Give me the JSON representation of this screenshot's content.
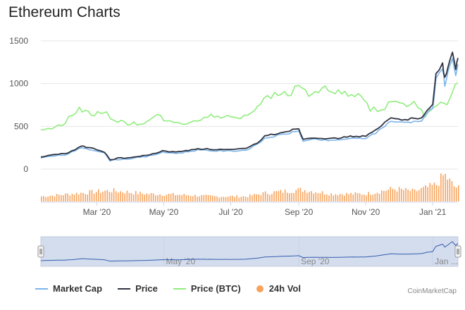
{
  "title": "Ethereum Charts",
  "credit": "CoinMarketCap",
  "colors": {
    "market_cap": "#7cb5ec",
    "price": "#2f3440",
    "price_btc": "#90ed7d",
    "vol": "#f7a35c"
  },
  "legend": [
    {
      "key": "market_cap",
      "label": "Market Cap",
      "kind": "line"
    },
    {
      "key": "price",
      "label": "Price",
      "kind": "line"
    },
    {
      "key": "price_btc",
      "label": "Price (BTC)",
      "kind": "line"
    },
    {
      "key": "vol",
      "label": "24h Vol",
      "kind": "dot"
    }
  ],
  "chart_data": {
    "type": "line",
    "title": "Ethereum Charts",
    "x_start": "2020-01-10",
    "x_end": "2021-01-24",
    "x_ticks": [
      {
        "label": "Mar '20",
        "date": "2020-03-01"
      },
      {
        "label": "May '20",
        "date": "2020-05-01"
      },
      {
        "label": "Jul '20",
        "date": "2020-07-01"
      },
      {
        "label": "Sep '20",
        "date": "2020-09-01"
      },
      {
        "label": "Nov '20",
        "date": "2020-11-01"
      },
      {
        "label": "Jan '21",
        "date": "2021-01-01"
      }
    ],
    "y_ticks": [
      "1500",
      "1000",
      "500",
      "0"
    ],
    "ylim": [
      0,
      1500
    ],
    "series": [
      {
        "name": "Price",
        "key": "price",
        "points": [
          [
            "2020-01-10",
            143
          ],
          [
            "2020-01-20",
            166
          ],
          [
            "2020-02-01",
            180
          ],
          [
            "2020-02-10",
            225
          ],
          [
            "2020-02-16",
            270
          ],
          [
            "2020-02-20",
            260
          ],
          [
            "2020-03-01",
            230
          ],
          [
            "2020-03-08",
            200
          ],
          [
            "2020-03-13",
            110
          ],
          [
            "2020-03-20",
            125
          ],
          [
            "2020-04-01",
            135
          ],
          [
            "2020-04-15",
            158
          ],
          [
            "2020-04-30",
            210
          ],
          [
            "2020-05-15",
            200
          ],
          [
            "2020-06-01",
            240
          ],
          [
            "2020-06-15",
            230
          ],
          [
            "2020-07-01",
            226
          ],
          [
            "2020-07-15",
            238
          ],
          [
            "2020-07-25",
            305
          ],
          [
            "2020-08-01",
            385
          ],
          [
            "2020-08-15",
            425
          ],
          [
            "2020-09-01",
            475
          ],
          [
            "2020-09-05",
            350
          ],
          [
            "2020-09-15",
            370
          ],
          [
            "2020-10-01",
            355
          ],
          [
            "2020-10-15",
            378
          ],
          [
            "2020-11-01",
            387
          ],
          [
            "2020-11-10",
            450
          ],
          [
            "2020-11-24",
            600
          ],
          [
            "2020-12-01",
            580
          ],
          [
            "2020-12-15",
            590
          ],
          [
            "2020-12-22",
            610
          ],
          [
            "2020-12-27",
            700
          ],
          [
            "2021-01-01",
            750
          ],
          [
            "2021-01-04",
            1100
          ],
          [
            "2021-01-10",
            1250
          ],
          [
            "2021-01-12",
            1050
          ],
          [
            "2021-01-15",
            1200
          ],
          [
            "2021-01-19",
            1400
          ],
          [
            "2021-01-22",
            1150
          ],
          [
            "2021-01-24",
            1300
          ]
        ]
      },
      {
        "name": "Market Cap",
        "key": "market_cap",
        "points": [
          [
            "2020-01-10",
            130
          ],
          [
            "2020-01-20",
            152
          ],
          [
            "2020-02-01",
            166
          ],
          [
            "2020-02-10",
            210
          ],
          [
            "2020-02-16",
            252
          ],
          [
            "2020-02-20",
            242
          ],
          [
            "2020-03-01",
            214
          ],
          [
            "2020-03-08",
            186
          ],
          [
            "2020-03-13",
            100
          ],
          [
            "2020-03-20",
            114
          ],
          [
            "2020-04-01",
            123
          ],
          [
            "2020-04-15",
            145
          ],
          [
            "2020-04-30",
            195
          ],
          [
            "2020-05-15",
            186
          ],
          [
            "2020-06-01",
            224
          ],
          [
            "2020-06-15",
            214
          ],
          [
            "2020-07-01",
            211
          ],
          [
            "2020-07-15",
            222
          ],
          [
            "2020-07-25",
            285
          ],
          [
            "2020-08-01",
            360
          ],
          [
            "2020-08-15",
            398
          ],
          [
            "2020-09-01",
            445
          ],
          [
            "2020-09-05",
            328
          ],
          [
            "2020-09-15",
            346
          ],
          [
            "2020-10-01",
            332
          ],
          [
            "2020-10-15",
            354
          ],
          [
            "2020-11-01",
            362
          ],
          [
            "2020-11-10",
            422
          ],
          [
            "2020-11-24",
            565
          ],
          [
            "2020-12-01",
            545
          ],
          [
            "2020-12-15",
            555
          ],
          [
            "2020-12-22",
            575
          ],
          [
            "2020-12-27",
            660
          ],
          [
            "2021-01-01",
            710
          ],
          [
            "2021-01-04",
            1040
          ],
          [
            "2021-01-10",
            1180
          ],
          [
            "2021-01-12",
            990
          ],
          [
            "2021-01-15",
            1135
          ],
          [
            "2021-01-19",
            1320
          ],
          [
            "2021-01-22",
            1085
          ],
          [
            "2021-01-24",
            1225
          ]
        ]
      },
      {
        "name": "Price (BTC)",
        "key": "price_btc",
        "points": [
          [
            "2020-01-10",
            470
          ],
          [
            "2020-01-20",
            480
          ],
          [
            "2020-02-01",
            540
          ],
          [
            "2020-02-08",
            640
          ],
          [
            "2020-02-14",
            700
          ],
          [
            "2020-02-25",
            650
          ],
          [
            "2020-03-10",
            640
          ],
          [
            "2020-03-20",
            560
          ],
          [
            "2020-04-01",
            525
          ],
          [
            "2020-04-15",
            550
          ],
          [
            "2020-04-25",
            620
          ],
          [
            "2020-05-10",
            530
          ],
          [
            "2020-05-25",
            545
          ],
          [
            "2020-06-10",
            620
          ],
          [
            "2020-06-25",
            610
          ],
          [
            "2020-07-10",
            615
          ],
          [
            "2020-07-20",
            665
          ],
          [
            "2020-07-28",
            790
          ],
          [
            "2020-08-10",
            870
          ],
          [
            "2020-08-25",
            900
          ],
          [
            "2020-09-01",
            975
          ],
          [
            "2020-09-10",
            880
          ],
          [
            "2020-09-25",
            930
          ],
          [
            "2020-10-10",
            880
          ],
          [
            "2020-10-25",
            860
          ],
          [
            "2020-11-05",
            700
          ],
          [
            "2020-11-15",
            690
          ],
          [
            "2020-11-25",
            790
          ],
          [
            "2020-12-05",
            770
          ],
          [
            "2020-12-15",
            760
          ],
          [
            "2020-12-25",
            620
          ],
          [
            "2021-01-02",
            700
          ],
          [
            "2021-01-08",
            820
          ],
          [
            "2021-01-14",
            780
          ],
          [
            "2021-01-19",
            900
          ],
          [
            "2021-01-24",
            1010
          ]
        ]
      }
    ],
    "volume": {
      "name": "24h Vol",
      "note": "relative daily volume",
      "points": [
        [
          "2020-01-10",
          0.3
        ],
        [
          "2020-02-15",
          0.5
        ],
        [
          "2020-03-13",
          0.65
        ],
        [
          "2020-04-15",
          0.45
        ],
        [
          "2020-05-15",
          0.4
        ],
        [
          "2020-06-15",
          0.3
        ],
        [
          "2020-07-15",
          0.3
        ],
        [
          "2020-08-01",
          0.5
        ],
        [
          "2020-09-03",
          0.7
        ],
        [
          "2020-10-01",
          0.45
        ],
        [
          "2020-11-01",
          0.45
        ],
        [
          "2020-11-26",
          0.75
        ],
        [
          "2020-12-15",
          0.6
        ],
        [
          "2021-01-04",
          1.0
        ],
        [
          "2021-01-11",
          1.6
        ],
        [
          "2021-01-20",
          0.9
        ],
        [
          "2021-01-24",
          0.8
        ]
      ]
    }
  },
  "navigator": {
    "labels": [
      {
        "label": "May '20",
        "date": "2020-05-01"
      },
      {
        "label": "Sep '20",
        "date": "2020-09-01"
      },
      {
        "label": "Jan ...",
        "date": "2021-01-01"
      }
    ]
  }
}
